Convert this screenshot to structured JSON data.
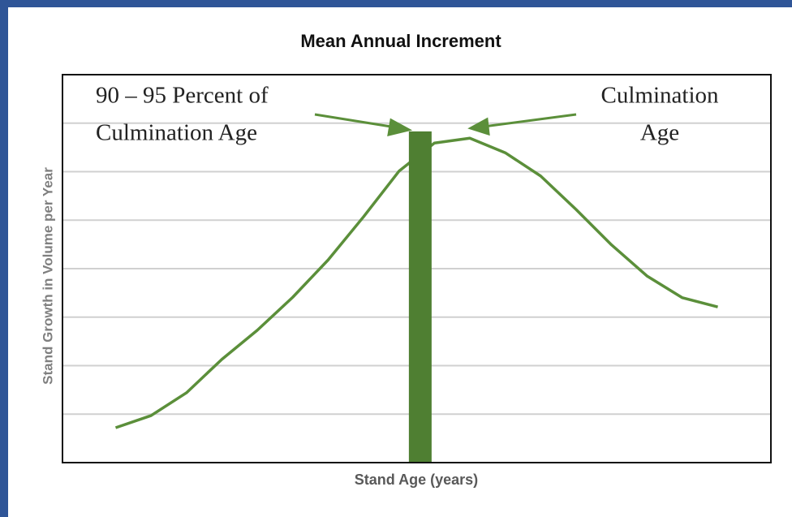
{
  "chart_data": {
    "type": "line",
    "title": "Mean Annual Increment",
    "x_label": "Stand Age (years)",
    "y_label": "Stand Growth in Volume per Year",
    "x": [
      1,
      2,
      3,
      4,
      5,
      6,
      7,
      8,
      9,
      10,
      11,
      12,
      13,
      14,
      15,
      16,
      17,
      18
    ],
    "values": [
      0.72,
      0.97,
      1.44,
      2.13,
      2.73,
      3.41,
      4.18,
      5.07,
      6.01,
      6.59,
      6.69,
      6.39,
      5.91,
      5.22,
      4.49,
      3.85,
      3.4,
      3.21
    ],
    "color": "#5b8f3a",
    "bar": {
      "x": 9.6,
      "value": 6.83,
      "color": "#4f7f32"
    },
    "xlim": [
      -0.5,
      19.5
    ],
    "ylim": [
      0,
      8
    ],
    "yticks": [
      1,
      2,
      3,
      4,
      5,
      6,
      7
    ],
    "grid": true,
    "annotations": [
      {
        "lines": [
          "90 – 95 Percent of",
          "Culmination Age"
        ]
      },
      {
        "lines": [
          "Culmination",
          "Age"
        ]
      }
    ]
  }
}
